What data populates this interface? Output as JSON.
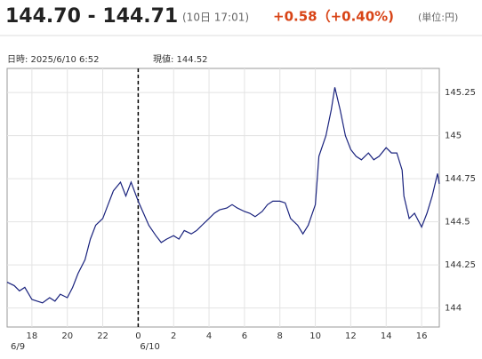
{
  "header": {
    "price": "144.70 - 144.71",
    "time": "(10日 17:01)",
    "change": "+0.58（+0.40%)",
    "unit": "(単位:円)"
  },
  "info": {
    "cursor": "日時: 2025/6/10  6:52",
    "current": "現値: 144.52"
  },
  "chart_data": {
    "type": "line",
    "x": [
      16.6,
      17.0,
      17.3,
      17.6,
      18.0,
      18.3,
      18.6,
      19.0,
      19.3,
      19.6,
      20.0,
      20.3,
      20.6,
      21.0,
      21.3,
      21.6,
      22.0,
      22.3,
      22.6,
      23.0,
      23.3,
      23.6,
      24.0,
      24.3,
      24.6,
      25.0,
      25.3,
      25.6,
      26.0,
      26.3,
      26.6,
      27.0,
      27.3,
      27.6,
      28.0,
      28.3,
      28.6,
      29.0,
      29.3,
      29.6,
      30.0,
      30.3,
      30.6,
      31.0,
      31.3,
      31.6,
      32.0,
      32.3,
      32.6,
      33.0,
      33.3,
      33.6,
      34.0,
      34.2,
      34.6,
      34.9,
      35.1,
      35.4,
      35.7,
      36.0,
      36.3,
      36.6,
      37.0,
      37.3,
      37.6,
      38.0,
      38.3,
      38.6,
      38.9,
      39.0,
      39.3,
      39.6,
      40.0,
      40.3,
      40.6,
      40.9,
      41.0
    ],
    "series": [
      {
        "color": "#1a237e",
        "values": [
          144.15,
          144.13,
          144.1,
          144.12,
          144.05,
          144.04,
          144.03,
          144.06,
          144.04,
          144.08,
          144.06,
          144.12,
          144.2,
          144.28,
          144.4,
          144.48,
          144.52,
          144.6,
          144.68,
          144.73,
          144.65,
          144.73,
          144.62,
          144.55,
          144.48,
          144.42,
          144.38,
          144.4,
          144.42,
          144.4,
          144.45,
          144.43,
          144.45,
          144.48,
          144.52,
          144.55,
          144.57,
          144.58,
          144.6,
          144.58,
          144.56,
          144.55,
          144.53,
          144.56,
          144.6,
          144.62,
          144.62,
          144.61,
          144.52,
          144.48,
          144.43,
          144.48,
          144.6,
          144.88,
          145.0,
          145.15,
          145.28,
          145.15,
          145.0,
          144.92,
          144.88,
          144.86,
          144.9,
          144.86,
          144.88,
          144.93,
          144.9,
          144.9,
          144.8,
          144.65,
          144.52,
          144.55,
          144.47,
          144.55,
          144.65,
          144.78,
          144.72
        ]
      }
    ],
    "xlim": [
      16.6,
      41.0
    ],
    "xticks": [
      18,
      20,
      22,
      {
        "value": 24,
        "label": "0"
      },
      {
        "value": 26,
        "label": "2"
      },
      {
        "value": 28,
        "label": "4"
      },
      {
        "value": 30,
        "label": "6"
      },
      {
        "value": 32,
        "label": "8"
      },
      {
        "value": 34,
        "label": "10"
      },
      {
        "value": 36,
        "label": "12"
      },
      {
        "value": 38,
        "label": "14"
      },
      {
        "value": 40,
        "label": "16"
      }
    ],
    "ylim": [
      143.89,
      145.39
    ],
    "yticks": [
      144,
      144.25,
      144.5,
      144.75,
      145,
      145.25
    ],
    "grid": true,
    "divider_x": 24,
    "date_labels": [
      "6/9",
      "6/10"
    ]
  }
}
